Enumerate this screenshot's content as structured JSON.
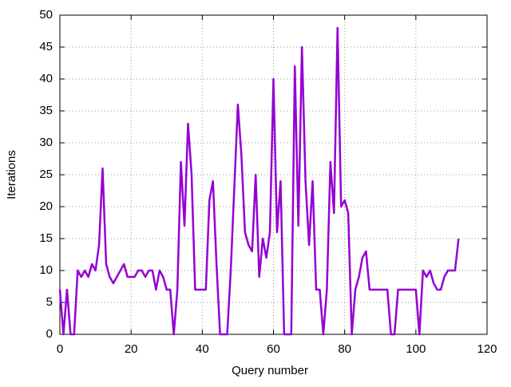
{
  "chart_data": {
    "type": "line",
    "x_label": "Query number",
    "y_label": "Iterations",
    "x": [
      0,
      1,
      2,
      3,
      4,
      5,
      6,
      7,
      8,
      9,
      10,
      11,
      12,
      13,
      14,
      15,
      16,
      17,
      18,
      19,
      20,
      21,
      22,
      23,
      24,
      25,
      26,
      27,
      28,
      29,
      30,
      31,
      32,
      33,
      34,
      35,
      36,
      37,
      38,
      39,
      40,
      41,
      42,
      43,
      44,
      45,
      46,
      47,
      48,
      49,
      50,
      51,
      52,
      53,
      54,
      55,
      56,
      57,
      58,
      59,
      60,
      61,
      62,
      63,
      64,
      65,
      66,
      67,
      68,
      69,
      70,
      71,
      72,
      73,
      74,
      75,
      76,
      77,
      78,
      79,
      80,
      81,
      82,
      83,
      84,
      85,
      86,
      87,
      88,
      89,
      90,
      91,
      92,
      93,
      94,
      95,
      96,
      97,
      98,
      99,
      100,
      101,
      102,
      103,
      104,
      105,
      106,
      107,
      108,
      109,
      110,
      111,
      112
    ],
    "series": [
      {
        "color": "#9400d3",
        "values": [
          7,
          0,
          7,
          0,
          0,
          10,
          9,
          10,
          9,
          11,
          10,
          14,
          26,
          11,
          9,
          8,
          9,
          10,
          11,
          9,
          9,
          9,
          10,
          10,
          9,
          10,
          10,
          7,
          10,
          9,
          7,
          7,
          0,
          7,
          27,
          17,
          33,
          25,
          7,
          7,
          7,
          7,
          21,
          24,
          11,
          0,
          0,
          0,
          10,
          23,
          36,
          28,
          16,
          14,
          13,
          25,
          9,
          15,
          12,
          16,
          40,
          16,
          24,
          0,
          0,
          0,
          42,
          17,
          45,
          24,
          14,
          24,
          7,
          7,
          0,
          7,
          27,
          19,
          48,
          20,
          21,
          19,
          0,
          7,
          9,
          12,
          13,
          7,
          7,
          7,
          7,
          7,
          7,
          0,
          0,
          7,
          7,
          7,
          7,
          7,
          7,
          0,
          10,
          9,
          10,
          8,
          7,
          7,
          9,
          10,
          10,
          10,
          15
        ]
      }
    ],
    "xlim": [
      0,
      120
    ],
    "xticks": [
      0,
      20,
      40,
      60,
      80,
      100,
      120
    ],
    "ylim": [
      0,
      50
    ],
    "yticks": [
      0,
      5,
      10,
      15,
      20,
      25,
      30,
      35,
      40,
      45,
      50
    ],
    "grid": true
  }
}
